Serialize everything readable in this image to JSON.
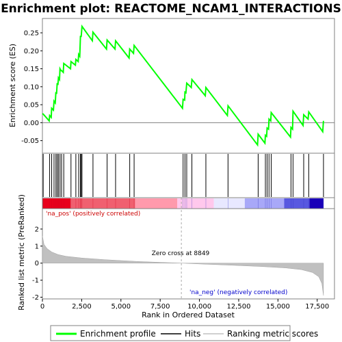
{
  "chart_data": {
    "type": "line",
    "title": "Enrichment plot: REACTOME_NCAM1_INTERACTIONS",
    "es_panel": {
      "ylabel": "Enrichment score (ES)",
      "ylim": [
        -0.085,
        0.29
      ],
      "yticks": [
        -0.05,
        0.0,
        0.05,
        0.1,
        0.15,
        0.2,
        0.25
      ],
      "ytick_labels": [
        "-0.05",
        "0.00",
        "0.05",
        "0.10",
        "0.15",
        "0.20",
        "0.25"
      ],
      "series": [
        {
          "name": "Enrichment profile",
          "color": "#00ff00",
          "x": [
            0,
            50,
            430,
            460,
            560,
            590,
            700,
            740,
            820,
            860,
            900,
            940,
            990,
            1020,
            1090,
            1120,
            1180,
            1220,
            1330,
            1360,
            1790,
            1820,
            2100,
            2130,
            2280,
            2310,
            2380,
            2420,
            2470,
            2520,
            3180,
            3220,
            4080,
            4120,
            4620,
            4660,
            5520,
            5560,
            5800,
            5840,
            8920,
            8960,
            9060,
            9080,
            9140,
            9190,
            9480,
            9520,
            10370,
            10410,
            11780,
            11820,
            13700,
            13740,
            14170,
            14200,
            14280,
            14310,
            14400,
            14430,
            14540,
            14570,
            15800,
            15830,
            15930,
            15960,
            16600,
            16640,
            16920,
            16960,
            17850,
            17900
          ],
          "y": [
            0.025,
            0.024,
            0.005,
            0.02,
            0.015,
            0.04,
            0.035,
            0.06,
            0.055,
            0.085,
            0.08,
            0.11,
            0.105,
            0.125,
            0.12,
            0.15,
            0.145,
            0.145,
            0.14,
            0.165,
            0.15,
            0.17,
            0.16,
            0.176,
            0.17,
            0.19,
            0.185,
            0.24,
            0.24,
            0.268,
            0.228,
            0.252,
            0.205,
            0.23,
            0.205,
            0.228,
            0.18,
            0.205,
            0.193,
            0.215,
            0.04,
            0.065,
            0.063,
            0.085,
            0.083,
            0.11,
            0.098,
            0.12,
            0.075,
            0.098,
            0.02,
            0.047,
            -0.062,
            -0.032,
            -0.057,
            -0.035,
            -0.038,
            -0.015,
            -0.018,
            0.01,
            0.005,
            0.028,
            -0.04,
            -0.013,
            -0.018,
            0.032,
            -0.008,
            0.022,
            0.01,
            0.03,
            -0.025,
            0.005
          ]
        }
      ]
    },
    "hits_panel": {
      "legend_label": "Hits",
      "positions": [
        50,
        460,
        590,
        740,
        860,
        940,
        1020,
        1120,
        1220,
        1360,
        1820,
        2130,
        2310,
        2420,
        2470,
        2520,
        3220,
        4120,
        4660,
        5560,
        5840,
        8960,
        9080,
        9190,
        9520,
        10410,
        11820,
        13740,
        14200,
        14310,
        14430,
        14570,
        15830,
        15960,
        16640,
        16960,
        17900
      ]
    },
    "rank_panel": {
      "ylabel": "Ranked list metric (PreRanked)",
      "xlabel": "Rank in Ordered Dataset",
      "legend_label": "Ranking metric scores",
      "ylim": [
        -2.1,
        3.2
      ],
      "yticks": [
        -2,
        -1,
        0,
        1,
        2
      ],
      "ytick_labels": [
        "-2",
        "-1",
        "0",
        "1",
        "2"
      ],
      "xlim": [
        0,
        18600
      ],
      "xticks": [
        0,
        2500,
        5000,
        7500,
        10000,
        12500,
        15000,
        17500
      ],
      "xtick_labels": [
        "0",
        "2,500",
        "5,000",
        "7,500",
        "10,000",
        "12,500",
        "15,000",
        "17,500"
      ],
      "zero_cross": 8849,
      "zero_cross_label": "Zero cross at 8849",
      "pos_label": "'na_pos' (positively correlated)",
      "neg_label": "'na_neg' (negatively correlated)",
      "curve_x": [
        0,
        100,
        300,
        600,
        1000,
        1500,
        2500,
        4000,
        6000,
        8000,
        8849,
        10000,
        12000,
        14000,
        15500,
        16500,
        17200,
        17600,
        17800,
        17900
      ],
      "curve_y": [
        1.6,
        1.1,
        0.85,
        0.65,
        0.5,
        0.4,
        0.3,
        0.2,
        0.1,
        0.03,
        0.0,
        -0.05,
        -0.12,
        -0.2,
        -0.28,
        -0.38,
        -0.55,
        -0.8,
        -1.2,
        -1.9
      ]
    },
    "legend": [
      "Enrichment profile",
      "Hits",
      "Ranking metric scores"
    ],
    "colors": {
      "profile": "#00ff00",
      "fill": "#c0c0c0",
      "pos_text": "#cc0000",
      "neg_text": "#0000cc",
      "zero_line": "#aaaaaa"
    },
    "heat_bar_colors": [
      "#e8001c",
      "#f06070",
      "#ff9aac",
      "#ffc8ec",
      "#e8e8ff",
      "#a8a8f8",
      "#5858e0",
      "#1a00b8"
    ]
  }
}
